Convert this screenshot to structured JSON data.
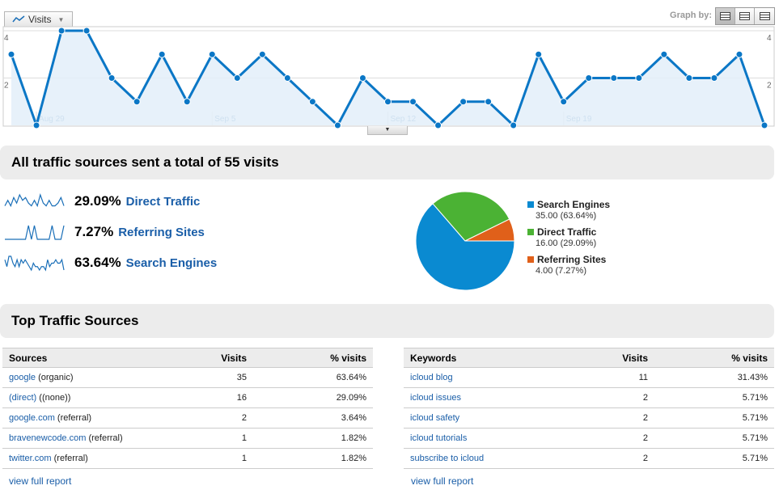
{
  "chart_header": {
    "metric_label": "Visits",
    "graph_by_label": "Graph by:",
    "graph_by_options": [
      "day-icon",
      "week-icon",
      "month-icon"
    ]
  },
  "chart_data": {
    "type": "area",
    "y_ticks": [
      "4",
      "2"
    ],
    "ylim": [
      0,
      4
    ],
    "date_labels": [
      "Aug 29",
      "Sep 5",
      "Sep 12",
      "Sep 19"
    ],
    "date_label_index": [
      1,
      8,
      15,
      22
    ],
    "values": [
      3,
      0,
      4,
      4,
      2,
      1,
      3,
      1,
      3,
      2,
      3,
      2,
      1,
      0,
      2,
      1,
      1,
      0,
      1,
      1,
      0,
      3,
      1,
      2,
      2,
      2,
      3,
      2,
      2,
      3,
      0
    ],
    "line_color": "#0b77c6",
    "fill_color": "#e3eff9"
  },
  "summary": {
    "title": "All traffic sources sent a total of 55 visits",
    "sources": [
      {
        "percent": "29.09%",
        "label": "Direct Traffic",
        "spark": [
          1,
          3,
          1,
          4,
          2,
          5,
          3,
          4,
          2,
          1,
          3,
          1,
          5,
          2,
          1,
          3,
          1,
          1,
          2,
          4,
          1
        ]
      },
      {
        "percent": "7.27%",
        "label": "Referring Sites",
        "spark": [
          0,
          0,
          0,
          0,
          0,
          0,
          0,
          0,
          3,
          0,
          3,
          0,
          0,
          0,
          0,
          0,
          3,
          0,
          0,
          0,
          3
        ]
      },
      {
        "percent": "63.64%",
        "label": "Search Engines",
        "spark": [
          3,
          1,
          4,
          4,
          2,
          1,
          3,
          1,
          3,
          2,
          3,
          2,
          1,
          0,
          2,
          1,
          1,
          0,
          1,
          1,
          0,
          3,
          1,
          2,
          2,
          3,
          2,
          2,
          3,
          0
        ]
      }
    ]
  },
  "pie": {
    "slices": [
      {
        "name": "Search Engines",
        "detail": "35.00 (63.64%)",
        "value": 63.64,
        "color": "#0a8ad1"
      },
      {
        "name": "Direct Traffic",
        "detail": "16.00 (29.09%)",
        "value": 29.09,
        "color": "#4bb234"
      },
      {
        "name": "Referring Sites",
        "detail": "4.00 (7.27%)",
        "value": 7.27,
        "color": "#e0601a"
      }
    ]
  },
  "top": {
    "title": "Top Traffic Sources",
    "sources_table": {
      "headers": [
        "Sources",
        "Visits",
        "% visits"
      ],
      "rows": [
        {
          "link": "google",
          "suffix": " (organic)",
          "visits": "35",
          "pct": "63.64%"
        },
        {
          "link": "(direct)",
          "suffix": " ((none))",
          "visits": "16",
          "pct": "29.09%"
        },
        {
          "link": "google.com",
          "suffix": " (referral)",
          "visits": "2",
          "pct": "3.64%"
        },
        {
          "link": "bravenewcode.com",
          "suffix": " (referral)",
          "visits": "1",
          "pct": "1.82%"
        },
        {
          "link": "twitter.com",
          "suffix": " (referral)",
          "visits": "1",
          "pct": "1.82%"
        }
      ],
      "full_report": "view full report"
    },
    "keywords_table": {
      "headers": [
        "Keywords",
        "Visits",
        "% visits"
      ],
      "rows": [
        {
          "link": "icloud blog",
          "suffix": "",
          "visits": "11",
          "pct": "31.43%"
        },
        {
          "link": "icloud issues",
          "suffix": "",
          "visits": "2",
          "pct": "5.71%"
        },
        {
          "link": "icloud safety",
          "suffix": "",
          "visits": "2",
          "pct": "5.71%"
        },
        {
          "link": "icloud tutorials",
          "suffix": "",
          "visits": "2",
          "pct": "5.71%"
        },
        {
          "link": "subscribe to icloud",
          "suffix": "",
          "visits": "2",
          "pct": "5.71%"
        }
      ],
      "full_report": "view full report"
    }
  }
}
